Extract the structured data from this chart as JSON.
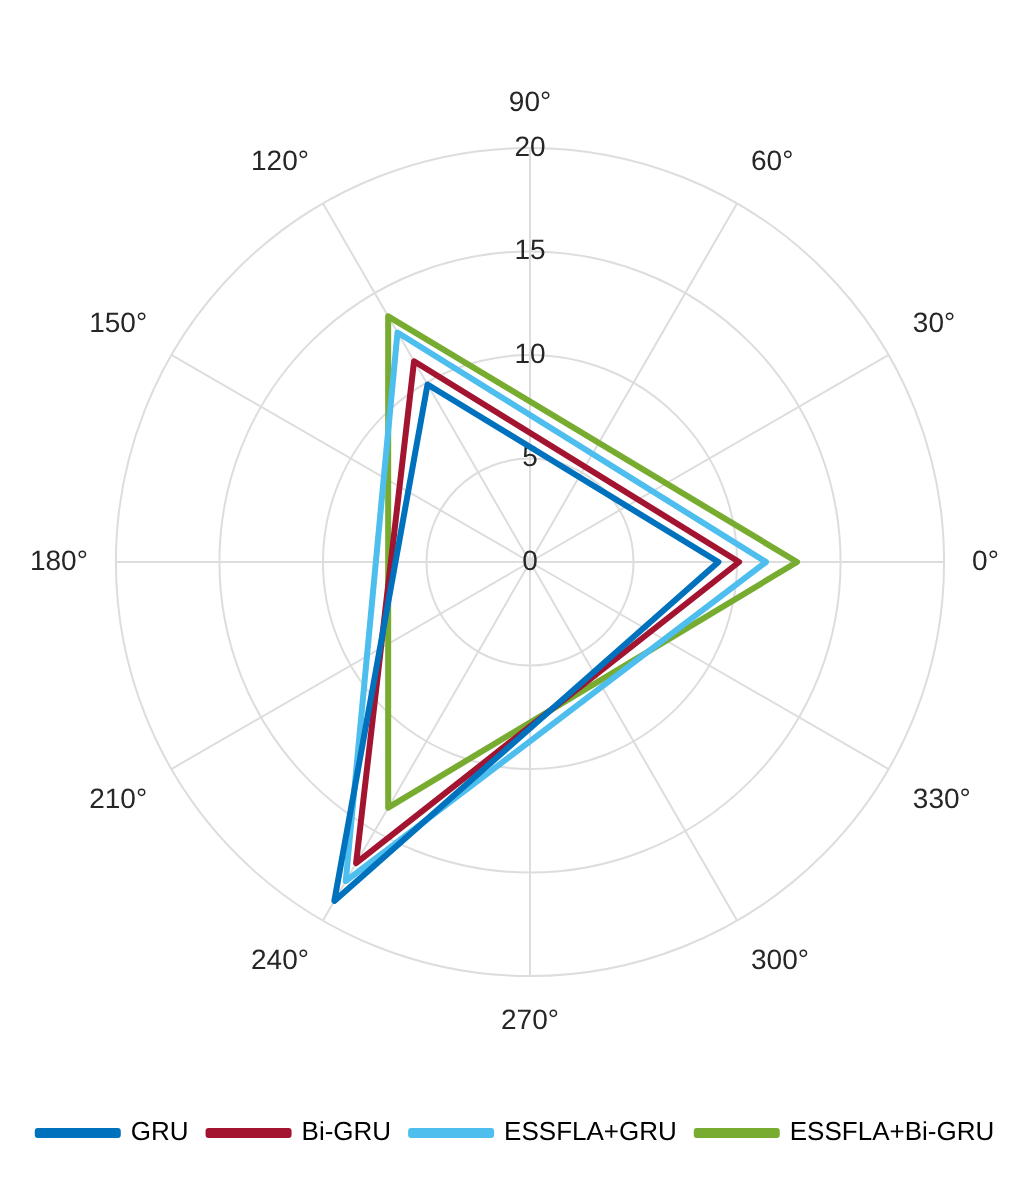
{
  "chart_data": {
    "type": "radar",
    "categories": [
      "90°",
      "60°",
      "30°",
      "0°",
      "330°",
      "300°",
      "270°",
      "240°",
      "210°",
      "180°",
      "150°",
      "120°"
    ],
    "ylim": [
      0,
      20
    ],
    "yticks": [
      0,
      5,
      10,
      15,
      20
    ],
    "grid": true,
    "legend": "bottom",
    "marker": "none",
    "line_style": "solid",
    "series": [
      {
        "name": "GRU",
        "color": "#0072bd",
        "values": [
          null,
          null,
          null,
          9.1,
          null,
          null,
          null,
          18.9,
          null,
          null,
          null,
          9.9
        ]
      },
      {
        "name": "Bi-GRU",
        "color": "#a2142f",
        "values": [
          null,
          null,
          null,
          10.1,
          null,
          null,
          null,
          16.8,
          null,
          null,
          null,
          11.2
        ]
      },
      {
        "name": "ESSFLA+GRU",
        "color": "#4dbeee",
        "values": [
          null,
          null,
          null,
          11.4,
          null,
          null,
          null,
          17.8,
          null,
          null,
          null,
          12.8
        ]
      },
      {
        "name": "ESSFLA+Bi-GRU",
        "color": "#77ac30",
        "values": [
          null,
          null,
          null,
          12.9,
          null,
          null,
          null,
          13.7,
          null,
          null,
          null,
          13.7
        ]
      }
    ]
  }
}
